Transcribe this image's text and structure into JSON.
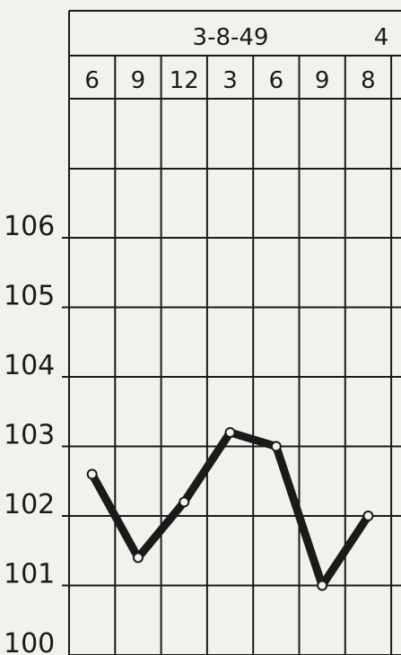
{
  "chart_data": {
    "type": "line",
    "date_labels": [
      "3-8-49",
      "4"
    ],
    "categories": [
      "6",
      "9",
      "12",
      "3",
      "6",
      "9",
      "8"
    ],
    "series": [
      {
        "color": "#1a1a1a",
        "values": [
          102.6,
          101.4,
          102.2,
          103.2,
          103.0,
          101.0,
          102.0
        ]
      }
    ],
    "ylim": [
      100,
      108
    ],
    "yticks": [
      100,
      101,
      102,
      103,
      104,
      105,
      106
    ],
    "grid": true
  }
}
